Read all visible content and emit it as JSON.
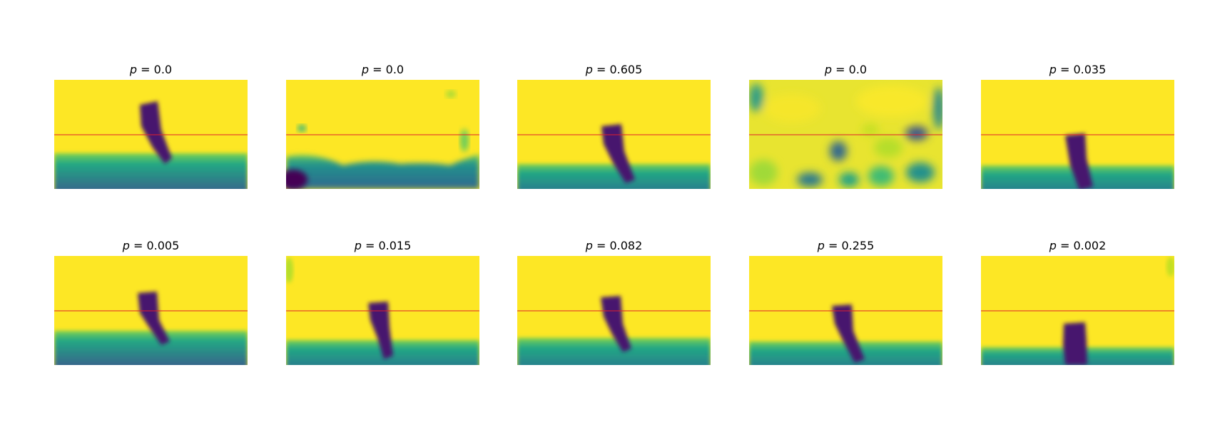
{
  "colors": {
    "background_high": "#fde725",
    "object_dark": "#46166e",
    "floor_teal": "#2a8a8c",
    "floor_deep": "#39558c",
    "reference_line": "#e0202a"
  },
  "panels": [
    {
      "symbol": "p",
      "eq": " = ",
      "value": "0.0"
    },
    {
      "symbol": "p",
      "eq": " = ",
      "value": "0.0"
    },
    {
      "symbol": "p",
      "eq": " = ",
      "value": "0.605"
    },
    {
      "symbol": "p",
      "eq": " = ",
      "value": "0.0"
    },
    {
      "symbol": "p",
      "eq": " = ",
      "value": "0.035"
    },
    {
      "symbol": "p",
      "eq": " = ",
      "value": "0.005"
    },
    {
      "symbol": "p",
      "eq": " = ",
      "value": "0.015"
    },
    {
      "symbol": "p",
      "eq": " = ",
      "value": "0.082"
    },
    {
      "symbol": "p",
      "eq": " = ",
      "value": "0.255"
    },
    {
      "symbol": "p",
      "eq": " = ",
      "value": "0.002"
    }
  ]
}
